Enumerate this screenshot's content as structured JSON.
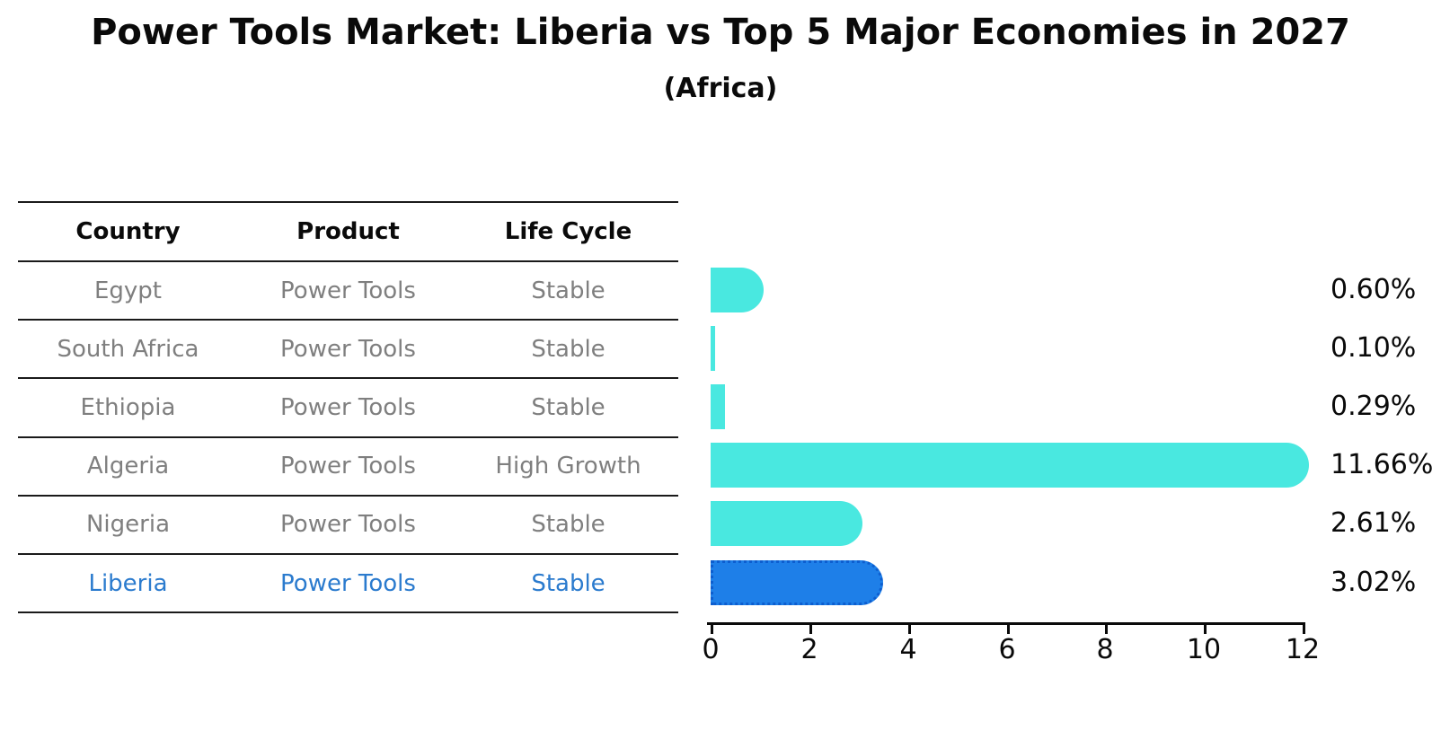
{
  "header": {
    "title": "Power Tools Market: Liberia vs Top 5 Major Economies in 2027",
    "subtitle": "(Africa)"
  },
  "table": {
    "columns": [
      "Country",
      "Product",
      "Life Cycle"
    ],
    "rows": [
      {
        "country": "Egypt",
        "product": "Power Tools",
        "life_cycle": "Stable",
        "highlight": false
      },
      {
        "country": "South Africa",
        "product": "Power Tools",
        "life_cycle": "Stable",
        "highlight": false
      },
      {
        "country": "Ethiopia",
        "product": "Power Tools",
        "life_cycle": "Stable",
        "highlight": false
      },
      {
        "country": "Algeria",
        "product": "Power Tools",
        "life_cycle": "High Growth",
        "highlight": false
      },
      {
        "country": "Nigeria",
        "product": "Power Tools",
        "life_cycle": "Stable",
        "highlight": false
      },
      {
        "country": "Liberia",
        "product": "Power Tools",
        "life_cycle": "Stable",
        "highlight": true
      }
    ]
  },
  "chart_data": {
    "type": "bar",
    "orientation": "horizontal",
    "title": "Power Tools Market: Liberia vs Top 5 Major Economies in 2027",
    "subtitle": "(Africa)",
    "categories": [
      "Egypt",
      "South Africa",
      "Ethiopia",
      "Algeria",
      "Nigeria",
      "Liberia"
    ],
    "values": [
      0.6,
      0.1,
      0.29,
      11.66,
      2.61,
      3.02
    ],
    "value_labels": [
      "0.60%",
      "0.10%",
      "0.29%",
      "11.66%",
      "2.61%",
      "3.02%"
    ],
    "highlight_category": "Liberia",
    "x_ticks": [
      0,
      2,
      4,
      6,
      8,
      10,
      12
    ],
    "xlim": [
      0,
      12
    ],
    "grid": false,
    "legend": false,
    "colors": {
      "bar_default": "#49e8e0",
      "bar_highlight": "#1e7fe8",
      "bar_highlight_border": "#0d5ecf",
      "highlight_text": "#2b7bce",
      "row_text": "#7f7f7f",
      "axis_text": "#0a0a0a"
    }
  }
}
